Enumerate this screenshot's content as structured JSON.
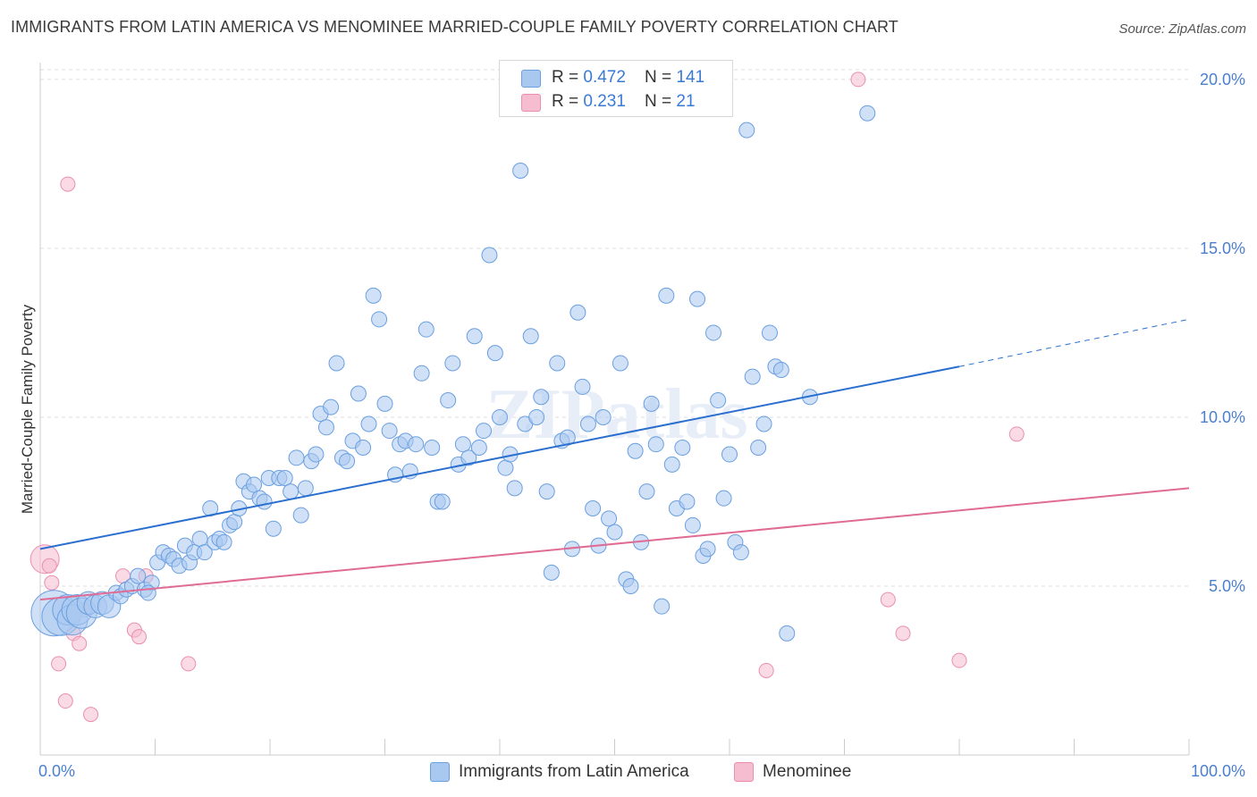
{
  "title": "IMMIGRANTS FROM LATIN AMERICA VS MENOMINEE MARRIED-COUPLE FAMILY POVERTY CORRELATION CHART",
  "source": "Source: ZipAtlas.com",
  "watermark": "ZIPatlas",
  "colors": {
    "blue_fill": "#a9c8f0",
    "blue_stroke": "#6a9fe0",
    "blue_line": "#2a6fd0",
    "pink_fill": "#f6bcd0",
    "pink_stroke": "#ea8fb0",
    "pink_line": "#e06b95",
    "grid": "#dddddd",
    "tick_text": "#4a7fd0"
  },
  "legend": {
    "blue": {
      "r_label": "R = ",
      "r_value": "0.472",
      "n_label": "N = ",
      "n_value": "141"
    },
    "pink": {
      "r_label": "R = ",
      "r_value": "0.231",
      "n_label": "N = ",
      "n_value": "21"
    }
  },
  "bottom_legend": {
    "blue": "Immigrants from Latin America",
    "pink": "Menominee"
  },
  "chart_data": {
    "type": "scatter",
    "xlabel": "",
    "ylabel": "Married-Couple Family Poverty",
    "xlim": [
      0,
      100
    ],
    "ylim": [
      0,
      20.5
    ],
    "x_tick_labels": [
      "0.0%",
      "100.0%"
    ],
    "y_ticks": [
      5,
      10,
      15,
      20
    ],
    "y_tick_labels": [
      "5.0%",
      "10.0%",
      "15.0%",
      "20.0%"
    ],
    "grid": true,
    "legend_position": "top-center",
    "series": [
      {
        "name": "Immigrants from Latin America",
        "r": 0.472,
        "n": 141,
        "trend": {
          "x": [
            0,
            80
          ],
          "y": [
            6.1,
            11.5
          ],
          "dashed_extension": {
            "x": [
              80,
              100
            ],
            "y": [
              11.5,
              12.9
            ]
          }
        },
        "points": [
          [
            1.2,
            4.2,
            3
          ],
          [
            1.8,
            4.1,
            2.5
          ],
          [
            2.4,
            4.3,
            2
          ],
          [
            2.8,
            4.0,
            2
          ],
          [
            3.2,
            4.3,
            2
          ],
          [
            3.6,
            4.2,
            2
          ],
          [
            4.2,
            4.5,
            1.5
          ],
          [
            4.8,
            4.4,
            1.5
          ],
          [
            5.4,
            4.5,
            1.5
          ],
          [
            6.0,
            4.4,
            1.5
          ],
          [
            6.6,
            4.8,
            1
          ],
          [
            7.0,
            4.7,
            1
          ],
          [
            7.5,
            4.9,
            1
          ],
          [
            8.0,
            5.0,
            1
          ],
          [
            8.5,
            5.3,
            1
          ],
          [
            9.1,
            4.9,
            1
          ],
          [
            9.7,
            5.1,
            1
          ],
          [
            10.2,
            5.7,
            1
          ],
          [
            10.7,
            6.0,
            1
          ],
          [
            11.2,
            5.9,
            1
          ],
          [
            11.6,
            5.8,
            1
          ],
          [
            12.1,
            5.6,
            1
          ],
          [
            12.6,
            6.2,
            1
          ],
          [
            13.0,
            5.7,
            1
          ],
          [
            13.4,
            6.0,
            1
          ],
          [
            13.9,
            6.4,
            1
          ],
          [
            14.3,
            6.0,
            1
          ],
          [
            14.8,
            7.3,
            1
          ],
          [
            15.2,
            6.3,
            1
          ],
          [
            15.6,
            6.4,
            1
          ],
          [
            16.0,
            6.3,
            1
          ],
          [
            16.5,
            6.8,
            1
          ],
          [
            16.9,
            6.9,
            1
          ],
          [
            17.3,
            7.3,
            1
          ],
          [
            17.7,
            8.1,
            1
          ],
          [
            18.2,
            7.8,
            1
          ],
          [
            18.6,
            8.0,
            1
          ],
          [
            19.1,
            7.6,
            1
          ],
          [
            19.5,
            7.5,
            1
          ],
          [
            19.9,
            8.2,
            1
          ],
          [
            20.3,
            6.7,
            1
          ],
          [
            20.8,
            8.2,
            1
          ],
          [
            21.3,
            8.2,
            1
          ],
          [
            21.8,
            7.8,
            1
          ],
          [
            22.3,
            8.8,
            1
          ],
          [
            22.7,
            7.1,
            1
          ],
          [
            23.1,
            7.9,
            1
          ],
          [
            23.6,
            8.7,
            1
          ],
          [
            24.0,
            8.9,
            1
          ],
          [
            24.4,
            10.1,
            1
          ],
          [
            24.9,
            9.7,
            1
          ],
          [
            25.3,
            10.3,
            1
          ],
          [
            25.8,
            11.6,
            1
          ],
          [
            26.3,
            8.8,
            1
          ],
          [
            26.7,
            8.7,
            1
          ],
          [
            27.2,
            9.3,
            1
          ],
          [
            27.7,
            10.7,
            1
          ],
          [
            28.1,
            9.1,
            1
          ],
          [
            28.6,
            9.8,
            1
          ],
          [
            29.0,
            13.6,
            1
          ],
          [
            29.5,
            12.9,
            1
          ],
          [
            30.0,
            10.4,
            1
          ],
          [
            30.4,
            9.6,
            1
          ],
          [
            30.9,
            8.3,
            1
          ],
          [
            31.3,
            9.2,
            1
          ],
          [
            31.8,
            9.3,
            1
          ],
          [
            32.2,
            8.4,
            1
          ],
          [
            32.7,
            9.2,
            1
          ],
          [
            33.2,
            11.3,
            1
          ],
          [
            33.6,
            12.6,
            1
          ],
          [
            34.1,
            9.1,
            1
          ],
          [
            34.6,
            7.5,
            1
          ],
          [
            35.0,
            7.5,
            1
          ],
          [
            35.5,
            10.5,
            1
          ],
          [
            35.9,
            11.6,
            1
          ],
          [
            36.4,
            8.6,
            1
          ],
          [
            36.8,
            9.2,
            1
          ],
          [
            37.3,
            8.8,
            1
          ],
          [
            37.8,
            12.4,
            1
          ],
          [
            38.2,
            9.1,
            1
          ],
          [
            38.6,
            9.6,
            1
          ],
          [
            39.1,
            14.8,
            1
          ],
          [
            39.6,
            11.9,
            1
          ],
          [
            40.0,
            10.0,
            1
          ],
          [
            40.5,
            8.5,
            1
          ],
          [
            40.9,
            8.9,
            1
          ],
          [
            41.3,
            7.9,
            1
          ],
          [
            41.8,
            17.3,
            1
          ],
          [
            42.2,
            9.8,
            1
          ],
          [
            42.7,
            12.4,
            1
          ],
          [
            43.2,
            10.0,
            1
          ],
          [
            43.6,
            10.6,
            1
          ],
          [
            44.1,
            7.8,
            1
          ],
          [
            44.5,
            5.4,
            1
          ],
          [
            45.0,
            11.6,
            1
          ],
          [
            45.4,
            9.3,
            1
          ],
          [
            45.9,
            9.4,
            1
          ],
          [
            46.3,
            6.1,
            1
          ],
          [
            46.8,
            13.1,
            1
          ],
          [
            47.2,
            10.9,
            1
          ],
          [
            47.7,
            9.8,
            1
          ],
          [
            48.1,
            7.3,
            1
          ],
          [
            48.6,
            6.2,
            1
          ],
          [
            49.0,
            10.0,
            1
          ],
          [
            49.5,
            7.0,
            1
          ],
          [
            50.0,
            6.6,
            1
          ],
          [
            50.5,
            11.6,
            1
          ],
          [
            51.0,
            5.2,
            1
          ],
          [
            51.4,
            5.0,
            1
          ],
          [
            51.8,
            9.0,
            1
          ],
          [
            52.3,
            6.3,
            1
          ],
          [
            52.8,
            7.8,
            1
          ],
          [
            53.2,
            10.4,
            1
          ],
          [
            53.6,
            9.2,
            1
          ],
          [
            54.1,
            4.4,
            1
          ],
          [
            54.5,
            13.6,
            1
          ],
          [
            55.0,
            8.6,
            1
          ],
          [
            55.4,
            7.3,
            1
          ],
          [
            55.9,
            9.1,
            1
          ],
          [
            56.3,
            7.5,
            1
          ],
          [
            56.8,
            6.8,
            1
          ],
          [
            57.2,
            13.5,
            1
          ],
          [
            57.7,
            5.9,
            1
          ],
          [
            58.1,
            6.1,
            1
          ],
          [
            58.6,
            12.5,
            1
          ],
          [
            59.0,
            10.5,
            1
          ],
          [
            59.5,
            7.6,
            1
          ],
          [
            60.0,
            8.9,
            1
          ],
          [
            60.5,
            6.3,
            1
          ],
          [
            61.0,
            6.0,
            1
          ],
          [
            61.5,
            18.5,
            1
          ],
          [
            62.0,
            11.2,
            1
          ],
          [
            62.5,
            9.1,
            1
          ],
          [
            63.0,
            9.8,
            1
          ],
          [
            63.5,
            12.5,
            1
          ],
          [
            64.0,
            11.5,
            1
          ],
          [
            64.5,
            11.4,
            1
          ],
          [
            65.0,
            3.6,
            1
          ],
          [
            67.0,
            10.6,
            1
          ],
          [
            72.0,
            19.0,
            1
          ],
          [
            9.4,
            4.8,
            1
          ]
        ]
      },
      {
        "name": "Menominee",
        "r": 0.231,
        "n": 21,
        "trend": {
          "x": [
            0,
            100
          ],
          "y": [
            4.6,
            7.9
          ]
        },
        "points": [
          [
            0.4,
            5.8,
            2
          ],
          [
            0.8,
            5.6,
            1
          ],
          [
            1.0,
            5.1,
            1
          ],
          [
            1.6,
            2.7,
            1
          ],
          [
            2.2,
            1.6,
            1
          ],
          [
            2.4,
            16.9,
            1
          ],
          [
            2.9,
            3.6,
            1
          ],
          [
            3.4,
            3.3,
            1
          ],
          [
            3.8,
            4.3,
            1
          ],
          [
            4.4,
            1.2,
            1
          ],
          [
            7.2,
            5.3,
            1
          ],
          [
            8.2,
            3.7,
            1
          ],
          [
            8.6,
            3.5,
            1
          ],
          [
            9.2,
            5.3,
            1
          ],
          [
            12.9,
            2.7,
            1
          ],
          [
            63.2,
            2.5,
            1
          ],
          [
            71.2,
            20.0,
            1
          ],
          [
            73.8,
            4.6,
            1
          ],
          [
            75.1,
            3.6,
            1
          ],
          [
            80.0,
            2.8,
            1
          ],
          [
            85.0,
            9.5,
            1
          ]
        ]
      }
    ]
  }
}
